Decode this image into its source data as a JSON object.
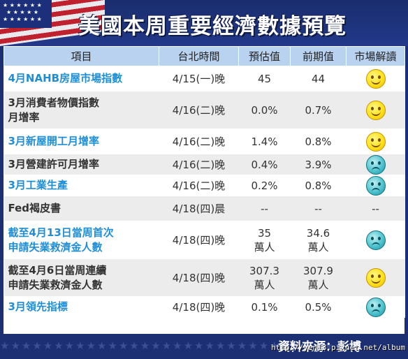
{
  "title": "美國本周重要經濟數據預覽",
  "columns": [
    "項目",
    "台北時間",
    "預估值",
    "前期值",
    "市場解讀"
  ],
  "rows": [
    {
      "item_lines": [
        "4月NAHB房屋市場指數"
      ],
      "highlight": true,
      "time": "4/15(一)晚",
      "estimate": [
        "45"
      ],
      "previous": [
        "44"
      ],
      "reading": "positive"
    },
    {
      "item_lines": [
        "3月消費者物價指數",
        "月增率"
      ],
      "highlight": false,
      "time": "4/16(二)晚",
      "estimate": [
        "0.0%"
      ],
      "previous": [
        "0.7%"
      ],
      "reading": "positive"
    },
    {
      "item_lines": [
        "3月新屋開工月增率"
      ],
      "highlight": true,
      "time": "4/16(二)晚",
      "estimate": [
        "1.4%"
      ],
      "previous": [
        "0.8%"
      ],
      "reading": "positive"
    },
    {
      "item_lines": [
        "3月營建許可月增率"
      ],
      "highlight": false,
      "time": "4/16(二)晚",
      "estimate": [
        "0.4%"
      ],
      "previous": [
        "3.9%"
      ],
      "reading": "negative"
    },
    {
      "item_lines": [
        "3月工業生產"
      ],
      "highlight": true,
      "time": "4/16(二)晚",
      "estimate": [
        "0.2%"
      ],
      "previous": [
        "0.8%"
      ],
      "reading": "negative"
    },
    {
      "item_lines": [
        "Fed褐皮書"
      ],
      "highlight": false,
      "time": "4/18(四)晨",
      "estimate": [
        "--"
      ],
      "previous": [
        "--"
      ],
      "reading_text": "--"
    },
    {
      "item_lines": [
        "截至4月13日當周首次",
        "申請失業救濟金人數"
      ],
      "highlight": true,
      "time": "4/18(四)晚",
      "estimate": [
        "35",
        "萬人"
      ],
      "previous": [
        "34.6",
        "萬人"
      ],
      "reading": "negative"
    },
    {
      "item_lines": [
        "截至4月6日當周連續",
        "申請失業救濟金人數"
      ],
      "highlight": false,
      "time": "4/18(四)晚",
      "estimate": [
        "307.3",
        "萬人"
      ],
      "previous": [
        "307.9",
        "萬人"
      ],
      "reading": "positive"
    },
    {
      "item_lines": [
        "3月領先指標"
      ],
      "highlight": true,
      "time": "4/18(四)晚",
      "estimate": [
        "0.1%"
      ],
      "previous": [
        "0.5%"
      ],
      "reading": "negative"
    }
  ],
  "footer": {
    "source": "資料來源：彭博"
  },
  "watermark": "http://yen13.pixnet.net/album",
  "colors": {
    "header_bg": "#1c2f73",
    "column_header_bg": "#b9d2ef",
    "highlight_text": "#1e8fd6",
    "stripe_bg": "#ececec"
  }
}
